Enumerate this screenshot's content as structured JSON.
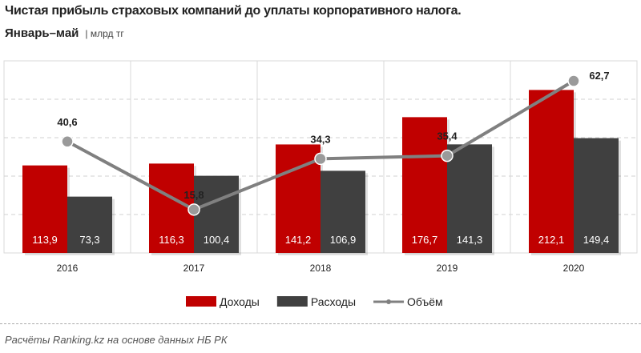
{
  "title": "Чистая прибыль страховых компаний до уплаты корпоративного налога.",
  "subtitle": "Январь–май",
  "unit": "| млрд тг",
  "source": "Расчёты Ranking.kz на основе данных НБ РК",
  "chart_data": {
    "type": "bar",
    "categories": [
      "2016",
      "2017",
      "2018",
      "2019",
      "2020"
    ],
    "series": [
      {
        "name": "Доходы",
        "type": "bar",
        "axis": "primary",
        "color": "#c00000",
        "values": [
          113.9,
          116.3,
          141.2,
          176.7,
          212.1
        ],
        "labels": [
          "113,9",
          "116,3",
          "141,2",
          "176,7",
          "212,1"
        ]
      },
      {
        "name": "Расходы",
        "type": "bar",
        "axis": "primary",
        "color": "#404040",
        "values": [
          73.3,
          100.4,
          106.9,
          141.3,
          149.4
        ],
        "labels": [
          "73,3",
          "100,4",
          "106,9",
          "141,3",
          "149,4"
        ]
      },
      {
        "name": "Объём",
        "type": "line",
        "axis": "secondary",
        "color": "#808080",
        "values": [
          40.6,
          15.8,
          34.3,
          35.4,
          62.7
        ],
        "labels": [
          "40,6",
          "15,8",
          "34,3",
          "35,4",
          "62,7"
        ]
      }
    ],
    "ylim": [
      0,
      250
    ],
    "y2lim": [
      0,
      70
    ],
    "grid": true,
    "legend": "bottom"
  }
}
